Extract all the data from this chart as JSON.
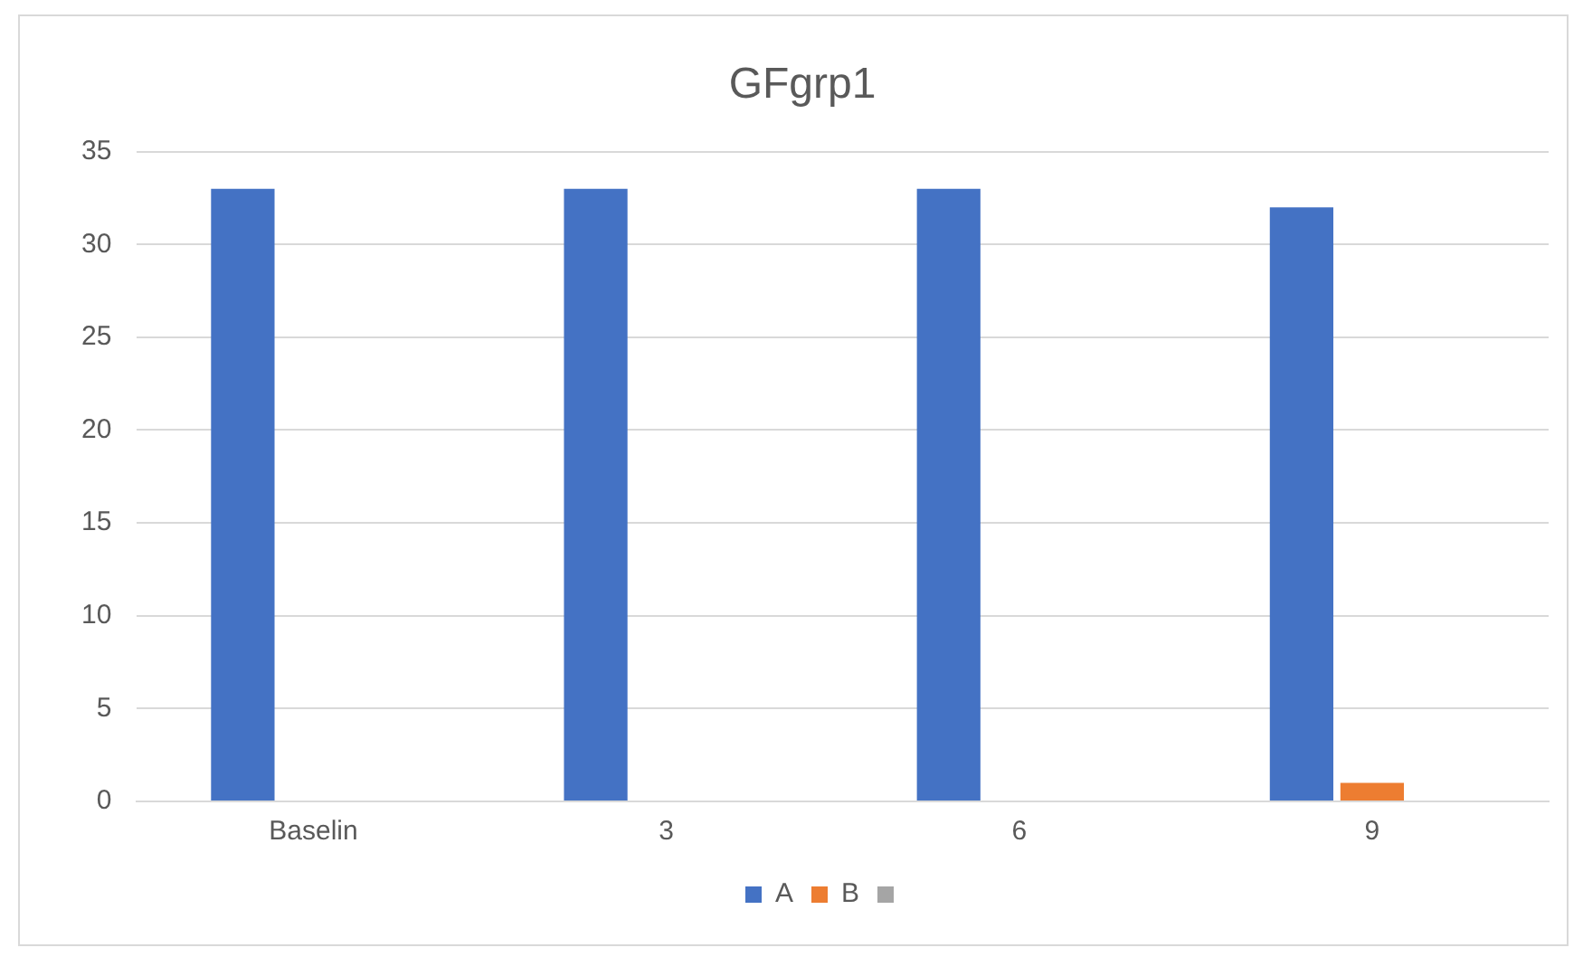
{
  "chart_data": {
    "type": "bar",
    "title": "GFgrp1",
    "categories": [
      "Baselin",
      "3",
      "6",
      "9"
    ],
    "series": [
      {
        "name": "A",
        "color": "#4472c4",
        "values": [
          33,
          33,
          33,
          32
        ]
      },
      {
        "name": "B",
        "color": "#ed7d31",
        "values": [
          0,
          0,
          0,
          1
        ]
      },
      {
        "color": "#a5a5a5",
        "values": [
          0,
          0,
          0,
          0
        ]
      }
    ],
    "ylim": [
      0,
      35
    ],
    "yticks": [
      0,
      5,
      10,
      15,
      20,
      25,
      30,
      35
    ],
    "grid": "y",
    "legend": "bottom"
  }
}
